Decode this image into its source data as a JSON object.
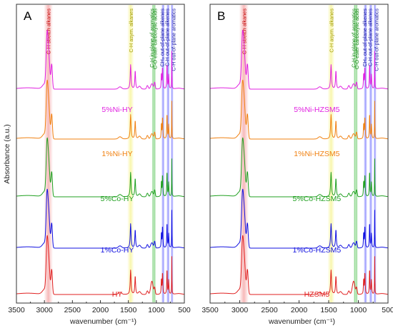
{
  "figure": {
    "ylabel": "Absorbance (a.u.)",
    "xlabel_html": "wavenumber (cm⁻¹)"
  },
  "chart_data": [
    {
      "type": "line",
      "panel": "A",
      "xlabel": "wavenumber (cm⁻¹)",
      "ylabel": "Absorbance (a.u.)",
      "xlim": [
        3500,
        500
      ],
      "xticks": [
        3500,
        3000,
        2500,
        2000,
        1500,
        1000,
        500
      ],
      "grid": false,
      "bands": [
        {
          "label": "C-H stretch alkanes",
          "center": 2930,
          "width": 160,
          "color": "#f08080",
          "label_color": "#c00000"
        },
        {
          "label": "C-H asym. alkanes",
          "center": 1460,
          "width": 120,
          "color": "#f3ef6a",
          "label_color": "#a09a00"
        },
        {
          "label": "C-H in-plane of aromatics",
          "center": 1060,
          "width": 40,
          "color": "#28b428",
          "label_color": "#1a8a1a"
        },
        {
          "label": "C-O ester carboxylic acids",
          "center": 1030,
          "width": 40,
          "color": "#28b428",
          "label_color": "#1a8a1a"
        },
        {
          "label": "CH₃ out-of-plane alkenes",
          "center": 880,
          "width": 60,
          "color": "#4444ff",
          "label_color": "#1a1aa0"
        },
        {
          "label": "C-H out-of-plane alkenes",
          "center": 790,
          "width": 60,
          "color": "#4444ff",
          "label_color": "#1a1aa0"
        },
        {
          "label": "C-H out-of-plane aromatics",
          "center": 720,
          "width": 50,
          "color": "#4444ff",
          "label_color": "#1a1aa0"
        }
      ],
      "series": [
        {
          "name": "5%Ni-HY",
          "color": "#e020e0"
        },
        {
          "name": "1%Ni-HY",
          "color": "#f08010"
        },
        {
          "name": "5%Co-HY",
          "color": "#20a020"
        },
        {
          "name": "1%Co-HY",
          "color": "#1010e0"
        },
        {
          "name": "HY",
          "color": "#e02020"
        }
      ]
    },
    {
      "type": "line",
      "panel": "B",
      "xlabel": "wavenumber (cm⁻¹)",
      "ylabel": "",
      "xlim": [
        3500,
        500
      ],
      "xticks": [
        3500,
        3000,
        2500,
        2000,
        1500,
        1000,
        500
      ],
      "grid": false,
      "bands": [
        {
          "label": "C-H stretch alkanes",
          "center": 2930,
          "width": 160,
          "color": "#f08080",
          "label_color": "#c00000"
        },
        {
          "label": "C-H asym. alkanes",
          "center": 1460,
          "width": 120,
          "color": "#f3ef6a",
          "label_color": "#a09a00"
        },
        {
          "label": "C-H in-plane of aromatics",
          "center": 1060,
          "width": 40,
          "color": "#28b428",
          "label_color": "#1a8a1a"
        },
        {
          "label": "C-O ester carboxylic acids",
          "center": 1030,
          "width": 40,
          "color": "#28b428",
          "label_color": "#1a8a1a"
        },
        {
          "label": "CH₃ out-of-plane alkenes",
          "center": 880,
          "width": 60,
          "color": "#4444ff",
          "label_color": "#1a1aa0"
        },
        {
          "label": "C-H out-of-plane alkenes",
          "center": 790,
          "width": 60,
          "color": "#4444ff",
          "label_color": "#1a1aa0"
        },
        {
          "label": "C-H out-of-plane aromatics",
          "center": 720,
          "width": 50,
          "color": "#4444ff",
          "label_color": "#1a1aa0"
        }
      ],
      "series": [
        {
          "name": "5%Ni-HZSM5",
          "color": "#e020e0"
        },
        {
          "name": "1%Ni-HZSM5",
          "color": "#f08010"
        },
        {
          "name": "5%Co-HZSM5",
          "color": "#20a020"
        },
        {
          "name": "1%Co-HZSM5",
          "color": "#1010e0"
        },
        {
          "name": "HZSM5",
          "color": "#e02020"
        }
      ]
    }
  ]
}
